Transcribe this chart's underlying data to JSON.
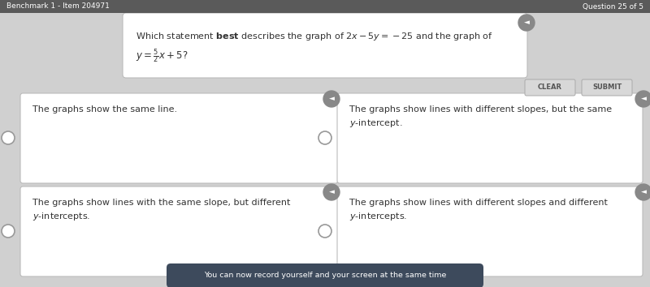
{
  "bg_color": "#d0d0d0",
  "header_color": "#5a5a5a",
  "header_text_left": "Benchmark 1 - Item 204971",
  "header_text_right": "Question 25 of 5",
  "question_line1": "Which statement \\textbf{best} describes the graph of $2x - 5y = -25$ and the graph of",
  "question_line2": "$y = \\frac{5}{2}x + 5$?",
  "clear_btn": "CLEAR",
  "submit_btn": "SUBMIT",
  "options": [
    [
      "The graphs show the same line."
    ],
    [
      "The graphs show lines with different slopes, but the same",
      "y-intercept."
    ],
    [
      "The graphs show lines with the same slope, but different",
      "y-intercepts."
    ],
    [
      "The graphs show lines with different slopes and different",
      "y-intercepts."
    ]
  ],
  "footer_text": "You can now record yourself and your screen at the same time",
  "white": "#ffffff",
  "light_gray": "#cccccc",
  "mid_gray": "#888888",
  "dark_gray": "#5a5a5a",
  "border_gray": "#bbbbbb",
  "footer_bg": "#3d4a5c",
  "footer_text_color": "#ffffff",
  "text_color": "#333333"
}
